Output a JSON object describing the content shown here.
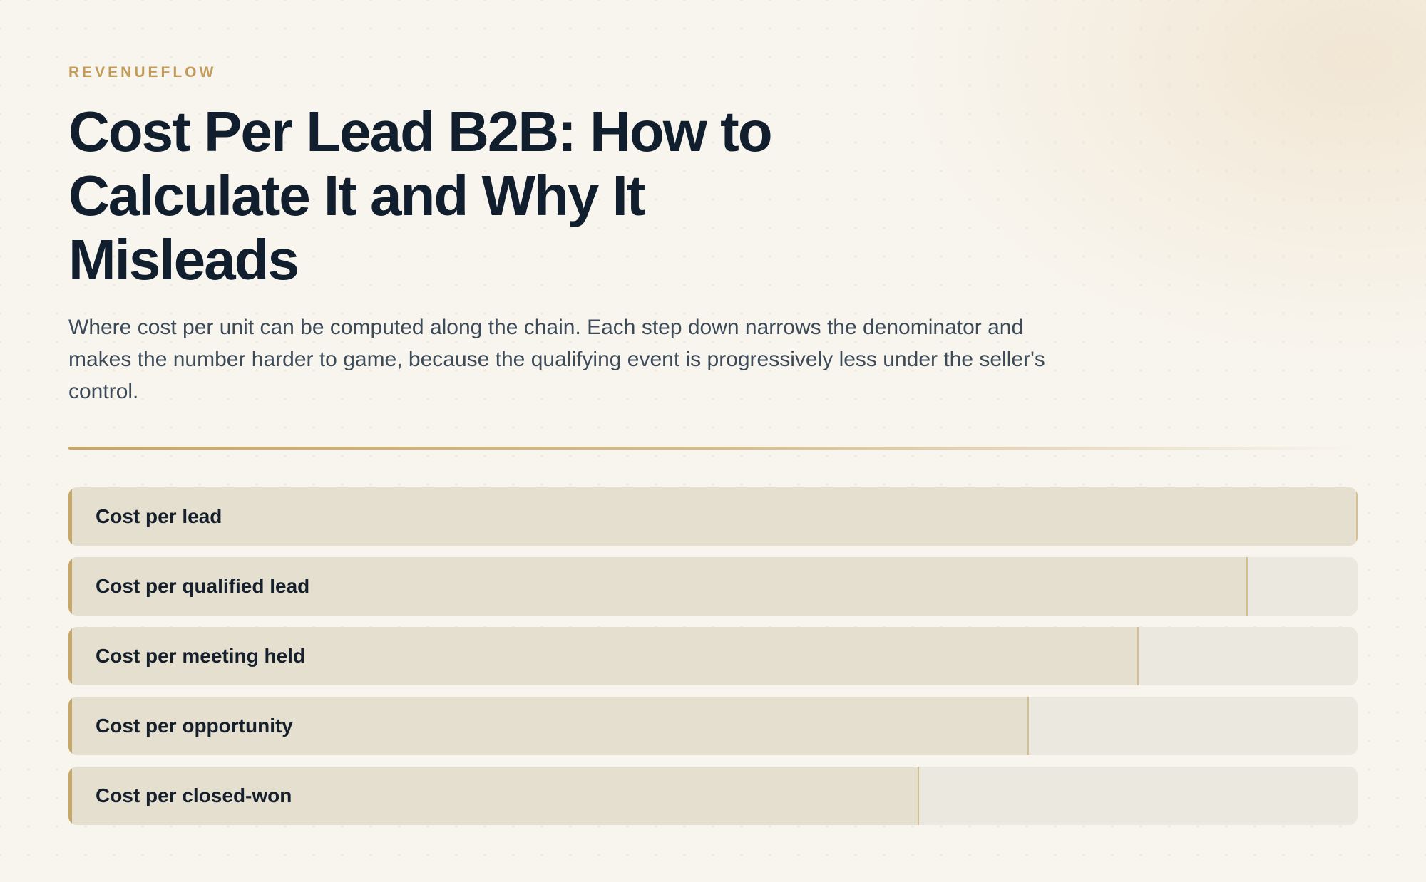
{
  "header": {
    "brand": "REVENUEFLOW",
    "title": "Cost Per Lead B2B: How to Calculate It and Why It Misleads",
    "subtitle": "Where cost per unit can be computed along the chain. Each step down narrows the denominator and makes the number harder to game, because the qualifying event is progressively less under the seller's control."
  },
  "colors": {
    "accent": "#c7a767",
    "title": "#101e2e",
    "bar_fill": "#e4dfcf",
    "bar_track": "#ebe8df"
  },
  "chart_data": {
    "type": "bar",
    "orientation": "horizontal",
    "categories": [
      "Cost per lead",
      "Cost per qualified lead",
      "Cost per meeting held",
      "Cost per opportunity",
      "Cost per closed-won"
    ],
    "values": [
      100,
      91.5,
      83,
      74.5,
      66
    ],
    "xlim": [
      0,
      100
    ],
    "grid": false,
    "legend": "none"
  }
}
